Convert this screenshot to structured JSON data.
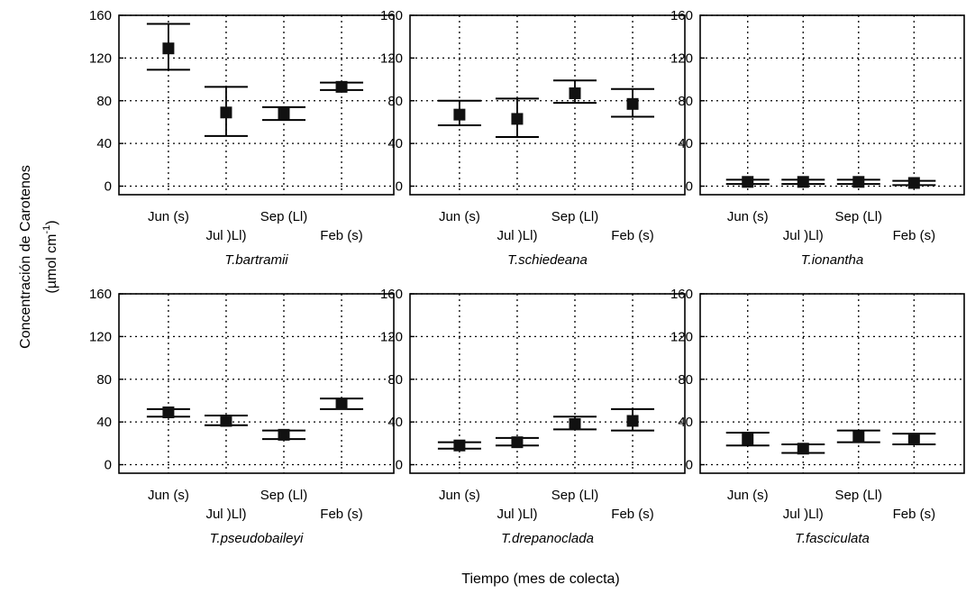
{
  "figure": {
    "ylabel": "Concentración de Carotenos",
    "ylabel_unit": "(µmol cm",
    "ylabel_unit_exp": "-1",
    "ylabel_unit_close": ")",
    "xlabel": "Tiempo (mes de colecta)"
  },
  "chart_data": [
    {
      "type": "scatter",
      "title": "T.bartramii",
      "categories": [
        "Jun (s)",
        "Jul )Ll)",
        "Sep (Ll)",
        "Feb (s)"
      ],
      "values": [
        129,
        69,
        68,
        93
      ],
      "error_low": [
        109,
        47,
        62,
        90
      ],
      "error_high": [
        152,
        93,
        74,
        97
      ],
      "ylim": [
        -8,
        160
      ],
      "yticks": [
        0,
        40,
        80,
        120,
        160
      ],
      "grid": true
    },
    {
      "type": "scatter",
      "title": "T.schiedeana",
      "categories": [
        "Jun (s)",
        "Jul )Ll)",
        "Sep (Ll)",
        "Feb (s)"
      ],
      "values": [
        67,
        63,
        87,
        77
      ],
      "error_low": [
        57,
        46,
        78,
        65
      ],
      "error_high": [
        80,
        82,
        99,
        91
      ],
      "ylim": [
        -8,
        160
      ],
      "yticks": [
        0,
        40,
        80,
        120,
        160
      ],
      "grid": true
    },
    {
      "type": "scatter",
      "title": "T.ionantha",
      "categories": [
        "Jun (s)",
        "Jul )Ll)",
        "Sep (Ll)",
        "Feb (s)"
      ],
      "values": [
        4,
        4,
        4,
        3
      ],
      "error_low": [
        2,
        2,
        2,
        1
      ],
      "error_high": [
        6,
        6,
        6,
        5
      ],
      "ylim": [
        -8,
        160
      ],
      "yticks": [
        0,
        40,
        80,
        120,
        160
      ],
      "grid": true
    },
    {
      "type": "scatter",
      "title": "T.pseudobaileyi",
      "categories": [
        "Jun (s)",
        "Jul )Ll)",
        "Sep (Ll)",
        "Feb (s)"
      ],
      "values": [
        49,
        41,
        28,
        57
      ],
      "error_low": [
        45,
        37,
        24,
        52
      ],
      "error_high": [
        52,
        46,
        32,
        62
      ],
      "ylim": [
        -8,
        160
      ],
      "yticks": [
        0,
        40,
        80,
        120,
        160
      ],
      "grid": true
    },
    {
      "type": "scatter",
      "title": "T.drepanoclada",
      "categories": [
        "Jun (s)",
        "Jul )Ll)",
        "Sep (Ll)",
        "Feb (s)"
      ],
      "values": [
        18,
        21,
        38,
        41
      ],
      "error_low": [
        15,
        18,
        33,
        32
      ],
      "error_high": [
        21,
        25,
        45,
        52
      ],
      "ylim": [
        -8,
        160
      ],
      "yticks": [
        0,
        40,
        80,
        120,
        160
      ],
      "grid": true
    },
    {
      "type": "scatter",
      "title": "T.fasciculata",
      "categories": [
        "Jun (s)",
        "Jul )Ll)",
        "Sep (Ll)",
        "Feb (s)"
      ],
      "values": [
        24,
        15,
        26,
        24
      ],
      "error_low": [
        18,
        11,
        21,
        19
      ],
      "error_high": [
        30,
        19,
        32,
        29
      ],
      "ylim": [
        -8,
        160
      ],
      "yticks": [
        0,
        40,
        80,
        120,
        160
      ],
      "grid": true
    }
  ]
}
